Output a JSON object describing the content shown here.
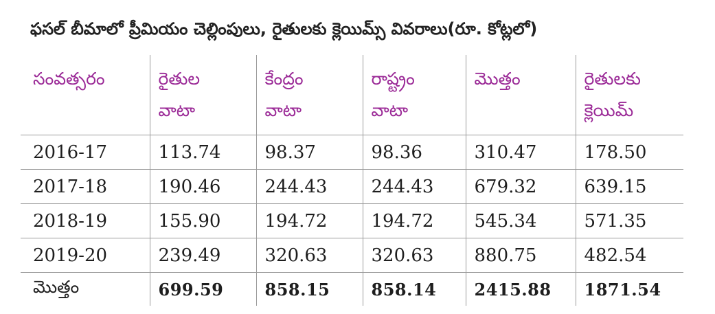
{
  "title": "ఫసల్ బీమాలో ప్రీమియం చెల్లింపులు, రైతులకు క్లెయిమ్స్ వివరాలు(రూ. కోట్లలో)",
  "headers": [
    [
      "సంవత్సరం"
    ],
    [
      "రైతుల",
      "వాటా"
    ],
    [
      "కేంద్రం",
      "వాటా"
    ],
    [
      "రాష్ట్రం",
      "వాటా"
    ],
    [
      "మొత్తం"
    ],
    [
      "రైతులకు",
      "క్లెయిమ్"
    ]
  ],
  "rows": [
    [
      "2016-17",
      "113.74",
      "98.37",
      "98.36",
      "310.47",
      "178.50"
    ],
    [
      "2017-18",
      "190.46",
      "244.43",
      "244.43",
      "679.32",
      "639.15"
    ],
    [
      "2018-19",
      "155.90",
      "194.72",
      "194.72",
      "545.34",
      "571.35"
    ],
    [
      "2019-20",
      "239.49",
      "320.63",
      "320.63",
      "880.75",
      "482.54"
    ]
  ],
  "total": [
    "మొత్తం",
    "699.59",
    "858.15",
    "858.14",
    "2415.88",
    "1871.54"
  ]
}
